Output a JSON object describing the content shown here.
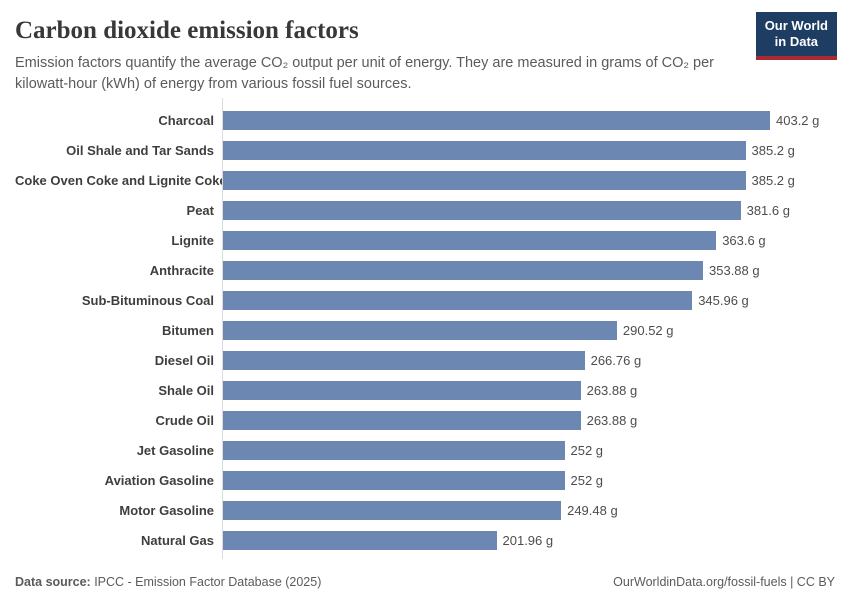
{
  "header": {
    "title": "Carbon dioxide emission factors",
    "subtitle_line1": "Emission factors quantify the average CO₂ output per unit of energy. They are measured in grams of CO₂ per",
    "subtitle_line2": "kilowatt-hour (kWh) of energy from various fossil fuel sources."
  },
  "logo": {
    "line1": "Our World",
    "line2": "in Data",
    "bg_color": "#1d3d63",
    "accent_color": "#a82b31"
  },
  "chart_data": {
    "type": "bar",
    "orientation": "horizontal",
    "title": "Carbon dioxide emission factors",
    "xlabel": "",
    "ylabel": "",
    "unit": "g",
    "grid": false,
    "legend": false,
    "xlim": [
      0,
      403.2
    ],
    "bar_color": "#6c87b1",
    "categories": [
      "Charcoal",
      "Oil Shale and Tar Sands",
      "Coke Oven Coke and Lignite Coke",
      "Peat",
      "Lignite",
      "Anthracite",
      "Sub-Bituminous Coal",
      "Bitumen",
      "Diesel Oil",
      "Shale Oil",
      "Crude Oil",
      "Jet Gasoline",
      "Aviation Gasoline",
      "Motor Gasoline",
      "Natural Gas"
    ],
    "values": [
      403.2,
      385.2,
      385.2,
      381.6,
      363.6,
      353.88,
      345.96,
      290.52,
      266.76,
      263.88,
      263.88,
      252,
      252,
      249.48,
      201.96
    ],
    "value_labels": [
      "403.2 g",
      "385.2 g",
      "385.2 g",
      "381.6 g",
      "363.6 g",
      "353.88 g",
      "345.96 g",
      "290.52 g",
      "266.76 g",
      "263.88 g",
      "263.88 g",
      "252 g",
      "252 g",
      "249.48 g",
      "201.96 g"
    ]
  },
  "footer": {
    "source_label": "Data source:",
    "source_text": " IPCC - Emission Factor Database (2025)",
    "right_text": "OurWorldinData.org/fossil-fuels | CC BY"
  }
}
